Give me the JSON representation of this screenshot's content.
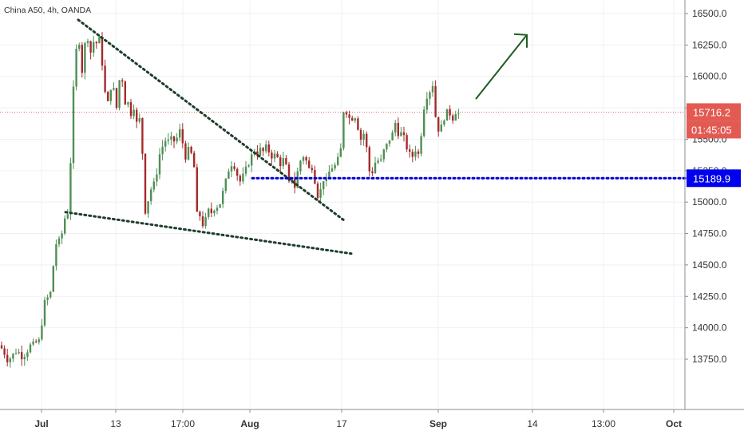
{
  "header": {
    "symbol_line": "China A50, 4h, OANDA"
  },
  "colors": {
    "up": "#26a69a",
    "down": "#ef5350",
    "candle_body_up": "#4f8f55",
    "candle_body_down": "#a52a2a",
    "grid": "#eef0f3",
    "axis_text": "#333333",
    "pattern_line": "#1e3d2a",
    "support_line": "#0000d8",
    "arrow": "#1e5d1e",
    "last_price_bg": "#e25a52",
    "level_bg": "#0000ee",
    "last_price_line": "#e25a52"
  },
  "price_axis": {
    "labels": [
      "16500.0",
      "16250.0",
      "16000.0",
      "15750.0",
      "15500.0",
      "15250.0",
      "15000.0",
      "14750.0",
      "14500.0",
      "14250.0",
      "14000.0",
      "13750.0"
    ],
    "values": [
      16500,
      16250,
      16000,
      15750,
      15500,
      15250,
      15000,
      14750,
      14500,
      14250,
      14000,
      13750
    ]
  },
  "time_axis": {
    "labels": [
      "Jul",
      "13",
      "17:00",
      "Aug",
      "17",
      "Sep",
      "14",
      "13:00",
      "Oct"
    ],
    "bold": [
      true,
      false,
      false,
      true,
      false,
      true,
      false,
      false,
      true
    ]
  },
  "badges": {
    "last_price": "15716.2",
    "countdown": "01:45:05",
    "level": "15189.9"
  },
  "chart_data": {
    "type": "candlestick",
    "title": "China A50, 4h, OANDA",
    "ylim": [
      13600,
      16600
    ],
    "x_axis": "time (4h bars), Jul – Oct",
    "series": [
      {
        "name": "",
        "close_path": [
          [
            0,
            13860
          ],
          [
            6,
            13790
          ],
          [
            10,
            13730
          ],
          [
            15,
            13780
          ],
          [
            22,
            13820
          ],
          [
            28,
            13760
          ],
          [
            33,
            13800
          ],
          [
            38,
            13860
          ],
          [
            44,
            13880
          ],
          [
            50,
            13900
          ],
          [
            52,
            14000
          ],
          [
            54,
            14180
          ],
          [
            58,
            14230
          ],
          [
            62,
            14250
          ],
          [
            64,
            14300
          ],
          [
            66,
            14450
          ],
          [
            68,
            14560
          ],
          [
            70,
            14660
          ],
          [
            72,
            14700
          ],
          [
            75,
            14690
          ],
          [
            78,
            14760
          ],
          [
            82,
            14900
          ],
          [
            86,
            14920
          ],
          [
            88,
            15250
          ],
          [
            90,
            15600
          ],
          [
            92,
            15900
          ],
          [
            94,
            16050
          ],
          [
            96,
            16250
          ],
          [
            98,
            16450
          ],
          [
            100,
            16150
          ],
          [
            102,
            16000
          ],
          [
            104,
            16100
          ],
          [
            106,
            16250
          ],
          [
            110,
            16300
          ],
          [
            114,
            16180
          ],
          [
            118,
            16300
          ],
          [
            122,
            16250
          ],
          [
            126,
            16330
          ],
          [
            128,
            16100
          ],
          [
            131,
            15900
          ],
          [
            134,
            15750
          ],
          [
            137,
            15850
          ],
          [
            140,
            15950
          ],
          [
            143,
            15880
          ],
          [
            146,
            15750
          ],
          [
            149,
            15950
          ],
          [
            152,
            16050
          ],
          [
            155,
            15850
          ],
          [
            158,
            15750
          ],
          [
            161,
            15800
          ],
          [
            164,
            15700
          ],
          [
            167,
            15780
          ],
          [
            170,
            15650
          ],
          [
            173,
            15600
          ],
          [
            176,
            15700
          ],
          [
            178,
            15450
          ],
          [
            180,
            15150
          ],
          [
            181,
            14900
          ],
          [
            185,
            15000
          ],
          [
            189,
            15100
          ],
          [
            193,
            15150
          ],
          [
            197,
            15250
          ],
          [
            200,
            15380
          ],
          [
            204,
            15450
          ],
          [
            208,
            15500
          ],
          [
            212,
            15480
          ],
          [
            216,
            15520
          ],
          [
            220,
            15450
          ],
          [
            224,
            15600
          ],
          [
            228,
            15500
          ],
          [
            232,
            15350
          ],
          [
            236,
            15420
          ],
          [
            240,
            15380
          ],
          [
            244,
            15250
          ],
          [
            247,
            14880
          ],
          [
            250,
            14900
          ],
          [
            254,
            14820
          ],
          [
            258,
            14870
          ],
          [
            262,
            14950
          ],
          [
            266,
            14900
          ],
          [
            270,
            14980
          ],
          [
            274,
            14950
          ],
          [
            278,
            15050
          ],
          [
            282,
            15150
          ],
          [
            286,
            15250
          ],
          [
            290,
            15300
          ],
          [
            294,
            15280
          ],
          [
            298,
            15200
          ],
          [
            302,
            15150
          ],
          [
            306,
            15250
          ],
          [
            310,
            15280
          ],
          [
            314,
            15350
          ],
          [
            318,
            15420
          ],
          [
            322,
            15380
          ],
          [
            326,
            15420
          ],
          [
            330,
            15400
          ],
          [
            334,
            15450
          ],
          [
            338,
            15380
          ],
          [
            342,
            15350
          ],
          [
            346,
            15400
          ],
          [
            350,
            15280
          ],
          [
            354,
            15350
          ],
          [
            358,
            15300
          ],
          [
            362,
            15150
          ],
          [
            366,
            15200
          ],
          [
            370,
            15100
          ],
          [
            374,
            15300
          ],
          [
            378,
            15350
          ],
          [
            382,
            15380
          ],
          [
            386,
            15250
          ],
          [
            390,
            15300
          ],
          [
            394,
            15180
          ],
          [
            398,
            15050
          ],
          [
            402,
            15100
          ],
          [
            406,
            15200
          ],
          [
            410,
            15150
          ],
          [
            414,
            15300
          ],
          [
            418,
            15250
          ],
          [
            422,
            15350
          ],
          [
            426,
            15320
          ],
          [
            429,
            15700
          ],
          [
            432,
            15750
          ],
          [
            436,
            15680
          ],
          [
            440,
            15650
          ],
          [
            444,
            15700
          ],
          [
            448,
            15600
          ],
          [
            452,
            15500
          ],
          [
            456,
            15550
          ],
          [
            460,
            15400
          ],
          [
            464,
            15180
          ],
          [
            468,
            15280
          ],
          [
            472,
            15350
          ],
          [
            476,
            15300
          ],
          [
            480,
            15400
          ],
          [
            484,
            15450
          ],
          [
            488,
            15500
          ],
          [
            492,
            15550
          ],
          [
            496,
            15650
          ],
          [
            500,
            15500
          ],
          [
            504,
            15580
          ],
          [
            508,
            15450
          ],
          [
            512,
            15400
          ],
          [
            516,
            15350
          ],
          [
            520,
            15420
          ],
          [
            524,
            15380
          ],
          [
            528,
            15560
          ],
          [
            532,
            15800
          ],
          [
            536,
            15860
          ],
          [
            540,
            15900
          ],
          [
            543,
            15950
          ],
          [
            546,
            15640
          ],
          [
            550,
            15560
          ],
          [
            554,
            15620
          ],
          [
            558,
            15700
          ],
          [
            562,
            15740
          ],
          [
            566,
            15640
          ],
          [
            570,
            15720
          ],
          [
            574,
            15700
          ],
          [
            578,
            15716
          ]
        ]
      }
    ],
    "last_price": 15716.2,
    "horizontal_level": 15189.9,
    "annotations": {
      "upper_trendline": [
        [
          98,
          16450
        ],
        [
          432,
          14850
        ]
      ],
      "lower_trendline": [
        [
          82,
          14920
        ],
        [
          440,
          14590
        ]
      ],
      "support_line": [
        [
          316,
          15189.9
        ],
        [
          932,
          15189.9
        ]
      ],
      "arrow": [
        [
          596,
          15820
        ],
        [
          660,
          16330
        ]
      ]
    }
  }
}
